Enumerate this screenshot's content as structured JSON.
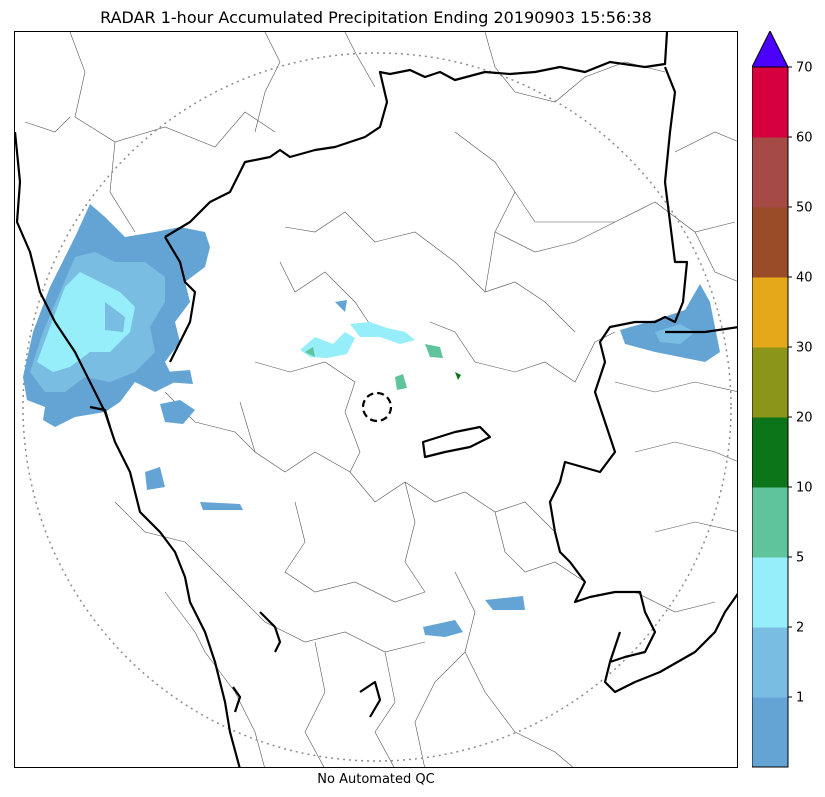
{
  "title": "RADAR 1-hour Accumulated Precipitation Ending 20190903 15:56:38",
  "qc_label": "No Automated QC",
  "colorbar": {
    "ticks": [
      "1",
      "2",
      "5",
      "10",
      "20",
      "30",
      "40",
      "50",
      "60",
      "70"
    ],
    "colors": [
      "#64a4d4",
      "#79bde2",
      "#95eefa",
      "#5fc49b",
      "#0c7519",
      "#8b9519",
      "#e6a81b",
      "#9a4c28",
      "#a54a44",
      "#d6003e"
    ],
    "extend_color": "#4c00ff"
  },
  "map": {
    "range_ring_color": "#8c8c8c",
    "boundary_color": "#000000"
  }
}
